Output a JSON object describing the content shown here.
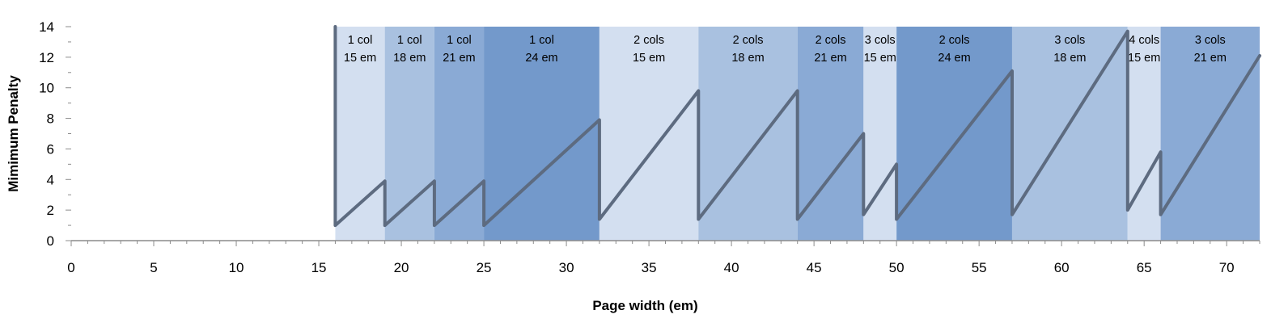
{
  "chart_data": {
    "type": "line",
    "title": "",
    "xlabel": "Page width (em)",
    "ylabel": "Mimimum Penalty",
    "xlim": [
      0,
      72
    ],
    "ylim": [
      0,
      14
    ],
    "xticks": [
      0,
      5,
      10,
      15,
      20,
      25,
      30,
      35,
      40,
      45,
      50,
      55,
      60,
      65,
      70
    ],
    "yticks": [
      0,
      2,
      4,
      6,
      8,
      10,
      12,
      14
    ],
    "grid": false,
    "legend": "none",
    "colors": {
      "line": "#5d6b80",
      "band_shades": [
        "#d3dff0",
        "#a9c1e0",
        "#8aaad5",
        "#7399cb"
      ]
    },
    "bands": [
      {
        "x0": 16,
        "x1": 19,
        "label1": "1 col",
        "label2": "15 em",
        "shade": 0
      },
      {
        "x0": 19,
        "x1": 22,
        "label1": "1 col",
        "label2": "18 em",
        "shade": 1
      },
      {
        "x0": 22,
        "x1": 25,
        "label1": "1 col",
        "label2": "21 em",
        "shade": 2
      },
      {
        "x0": 25,
        "x1": 32,
        "label1": "1 col",
        "label2": "24 em",
        "shade": 3
      },
      {
        "x0": 32,
        "x1": 38,
        "label1": "2 cols",
        "label2": "15 em",
        "shade": 0
      },
      {
        "x0": 38,
        "x1": 44,
        "label1": "2 cols",
        "label2": "18 em",
        "shade": 1
      },
      {
        "x0": 44,
        "x1": 48,
        "label1": "2 cols",
        "label2": "21 em",
        "shade": 2
      },
      {
        "x0": 48,
        "x1": 50,
        "label1": "3 cols",
        "label2": "15 em",
        "shade": 0
      },
      {
        "x0": 50,
        "x1": 57,
        "label1": "2 cols",
        "label2": "24 em",
        "shade": 3
      },
      {
        "x0": 57,
        "x1": 64,
        "label1": "3 cols",
        "label2": "18 em",
        "shade": 1
      },
      {
        "x0": 64,
        "x1": 66,
        "label1": "4 cols",
        "label2": "15 em",
        "shade": 0
      },
      {
        "x0": 66,
        "x1": 72,
        "label1": "3 cols",
        "label2": "21 em",
        "shade": 2
      }
    ],
    "series": [
      {
        "values": [
          [
            16,
            14
          ],
          [
            16,
            1
          ],
          [
            19,
            3.9
          ],
          [
            19,
            1
          ],
          [
            22,
            3.9
          ],
          [
            22,
            1
          ],
          [
            25,
            3.9
          ],
          [
            25,
            1
          ],
          [
            32,
            7.9
          ],
          [
            32,
            1.4
          ],
          [
            38,
            9.8
          ],
          [
            38,
            1.4
          ],
          [
            44,
            9.8
          ],
          [
            44,
            1.4
          ],
          [
            48,
            7.0
          ],
          [
            48,
            1.7
          ],
          [
            50,
            5.0
          ],
          [
            50,
            1.4
          ],
          [
            57,
            11.1
          ],
          [
            57,
            1.7
          ],
          [
            64,
            13.7
          ],
          [
            64,
            2.0
          ],
          [
            66,
            5.8
          ],
          [
            66,
            1.7
          ],
          [
            72,
            12.1
          ]
        ]
      }
    ]
  }
}
